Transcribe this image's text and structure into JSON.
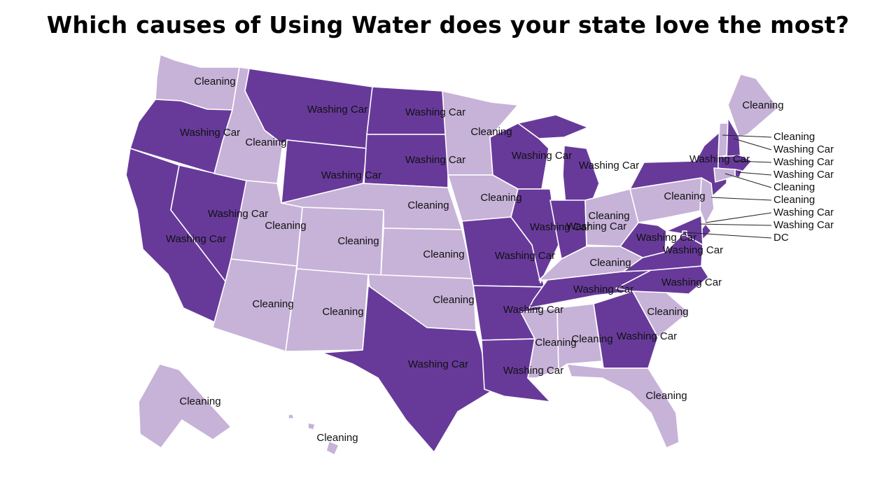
{
  "title": "Which causes of Using Water does your state love the most?",
  "colors": {
    "washing_car": "#673A9A",
    "cleaning": "#C7B2D8",
    "border": "#FFFFFF",
    "label": "#111111"
  },
  "categories": {
    "washing_car": "Washing Car",
    "cleaning": "Cleaning"
  },
  "states": [
    {
      "id": "WA",
      "category": "cleaning",
      "label": "Cleaning"
    },
    {
      "id": "OR",
      "category": "washing_car",
      "label": "Washing Car"
    },
    {
      "id": "CA",
      "category": "washing_car",
      "label": "Washing Car"
    },
    {
      "id": "NV",
      "category": "washing_car",
      "label": "Washing Car"
    },
    {
      "id": "ID",
      "category": "cleaning",
      "label": "Cleaning"
    },
    {
      "id": "MT",
      "category": "washing_car",
      "label": "Washing Car"
    },
    {
      "id": "WY",
      "category": "washing_car",
      "label": "Washing Car"
    },
    {
      "id": "UT",
      "category": "cleaning",
      "label": "Cleaning"
    },
    {
      "id": "AZ",
      "category": "cleaning",
      "label": "Cleaning"
    },
    {
      "id": "CO",
      "category": "cleaning",
      "label": "Cleaning"
    },
    {
      "id": "NM",
      "category": "cleaning",
      "label": "Cleaning"
    },
    {
      "id": "ND",
      "category": "washing_car",
      "label": "Washing Car"
    },
    {
      "id": "SD",
      "category": "washing_car",
      "label": "Washing Car"
    },
    {
      "id": "NE",
      "category": "cleaning",
      "label": "Cleaning"
    },
    {
      "id": "KS",
      "category": "cleaning",
      "label": "Cleaning"
    },
    {
      "id": "OK",
      "category": "cleaning",
      "label": "Cleaning"
    },
    {
      "id": "TX",
      "category": "washing_car",
      "label": "Washing Car"
    },
    {
      "id": "MN",
      "category": "cleaning",
      "label": "Cleaning"
    },
    {
      "id": "IA",
      "category": "cleaning",
      "label": "Cleaning"
    },
    {
      "id": "MO",
      "category": "washing_car",
      "label": "Washing Car"
    },
    {
      "id": "AR",
      "category": "washing_car",
      "label": "Washing Car"
    },
    {
      "id": "LA",
      "category": "washing_car",
      "label": "Washing Car"
    },
    {
      "id": "WI",
      "category": "washing_car",
      "label": "Washing Car"
    },
    {
      "id": "IL",
      "category": "washing_car",
      "label": "Washing Car"
    },
    {
      "id": "MI",
      "category": "washing_car",
      "label": "Washing Car"
    },
    {
      "id": "IN",
      "category": "washing_car",
      "label": "Washing Car"
    },
    {
      "id": "OH",
      "category": "cleaning",
      "label": "Cleaning"
    },
    {
      "id": "KY",
      "category": "cleaning",
      "label": "Cleaning"
    },
    {
      "id": "TN",
      "category": "washing_car",
      "label": "Washing Car"
    },
    {
      "id": "MS",
      "category": "cleaning",
      "label": "Cleaning"
    },
    {
      "id": "AL",
      "category": "cleaning",
      "label": "Cleaning"
    },
    {
      "id": "GA",
      "category": "washing_car",
      "label": "Washing Car"
    },
    {
      "id": "FL",
      "category": "cleaning",
      "label": "Cleaning"
    },
    {
      "id": "SC",
      "category": "cleaning",
      "label": "Cleaning"
    },
    {
      "id": "NC",
      "category": "washing_car",
      "label": "Washing Car"
    },
    {
      "id": "VA",
      "category": "washing_car",
      "label": "Washing Car"
    },
    {
      "id": "WV",
      "category": "washing_car",
      "label": "Washing Car"
    },
    {
      "id": "PA",
      "category": "cleaning",
      "label": "Cleaning"
    },
    {
      "id": "NY",
      "category": "washing_car",
      "label": "Washing Car"
    },
    {
      "id": "NJ",
      "category": "cleaning",
      "label": ""
    },
    {
      "id": "DE",
      "category": "washing_car",
      "label": ""
    },
    {
      "id": "MD",
      "category": "washing_car",
      "label": ""
    },
    {
      "id": "DC",
      "category": "washing_car",
      "label": ""
    },
    {
      "id": "ME",
      "category": "cleaning",
      "label": "Cleaning"
    },
    {
      "id": "VT",
      "category": "cleaning",
      "label": ""
    },
    {
      "id": "NH",
      "category": "washing_car",
      "label": ""
    },
    {
      "id": "MA",
      "category": "washing_car",
      "label": ""
    },
    {
      "id": "RI",
      "category": "washing_car",
      "label": ""
    },
    {
      "id": "CT",
      "category": "cleaning",
      "label": ""
    },
    {
      "id": "AK",
      "category": "cleaning",
      "label": "Cleaning"
    },
    {
      "id": "HI",
      "category": "cleaning",
      "label": "Cleaning"
    }
  ],
  "callouts": [
    {
      "id": "VT",
      "label": "Cleaning"
    },
    {
      "id": "NH",
      "label": "Washing Car"
    },
    {
      "id": "MA",
      "label": "Washing Car"
    },
    {
      "id": "RI",
      "label": "Washing Car"
    },
    {
      "id": "CT",
      "label": "Cleaning"
    },
    {
      "id": "NJ",
      "label": "Cleaning"
    },
    {
      "id": "DE",
      "label": "Washing Car"
    },
    {
      "id": "MD",
      "label": "Washing Car"
    },
    {
      "id": "DC",
      "label": "DC"
    }
  ]
}
